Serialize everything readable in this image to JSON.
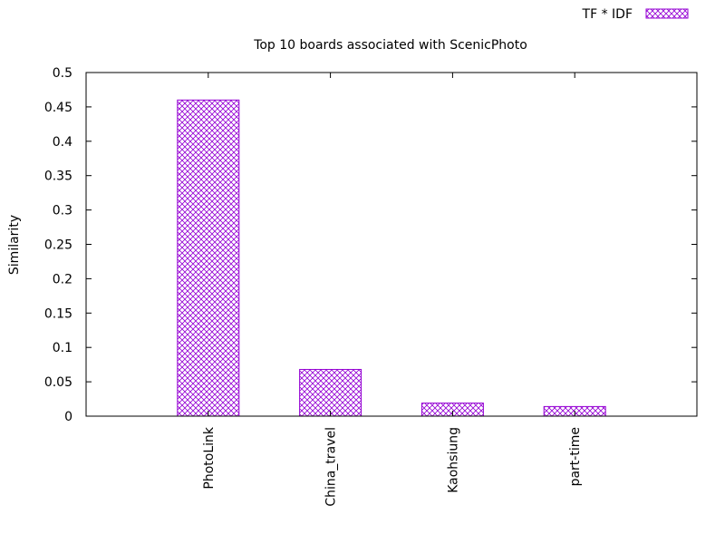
{
  "chart_data": {
    "type": "bar",
    "title": "Top 10 boards associated with ScenicPhoto",
    "xlabel": "",
    "ylabel": "Similarity",
    "categories": [
      "PhotoLink",
      "China_travel",
      "Kaohsiung",
      "part-time"
    ],
    "series": [
      {
        "name": "TF * IDF",
        "values": [
          0.46,
          0.068,
          0.019,
          0.014
        ]
      }
    ],
    "ylim": [
      0,
      0.5
    ],
    "yticks": [
      "0",
      "0.05",
      "0.1",
      "0.15",
      "0.2",
      "0.25",
      "0.3",
      "0.35",
      "0.4",
      "0.45",
      "0.5"
    ],
    "grid": false,
    "legend_position": "top-right",
    "bar_color": "#9400d3",
    "bar_fill": "crosshatch"
  }
}
